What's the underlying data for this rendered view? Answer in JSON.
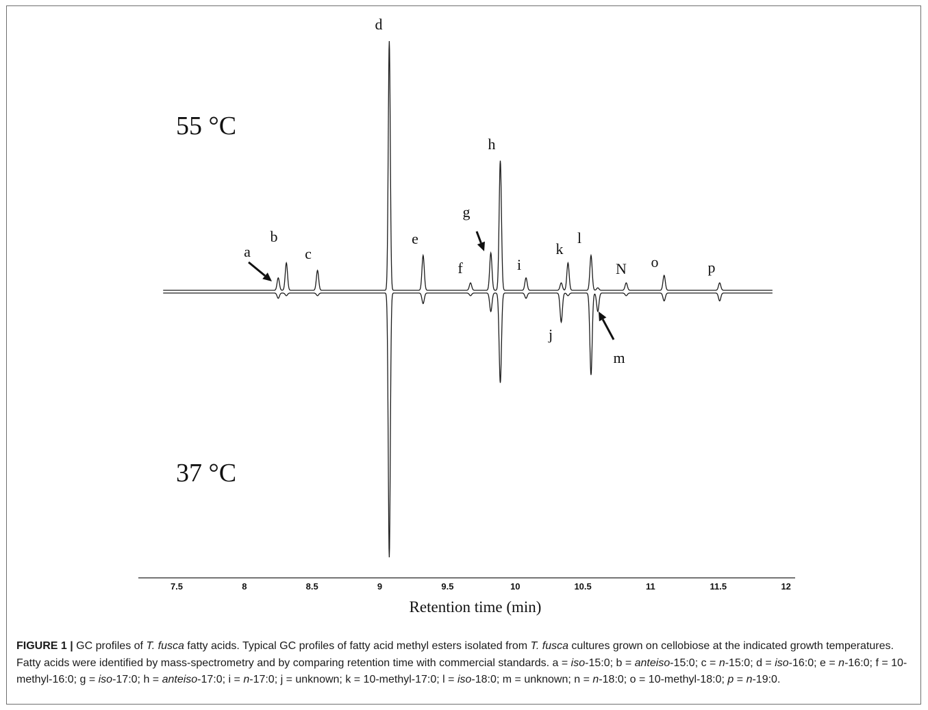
{
  "chart_data": {
    "type": "line",
    "title": "",
    "xlabel": "Retention time (min)",
    "ylabel": "",
    "xlim": [
      7.4,
      11.9
    ],
    "x_ticks": [
      "7.5",
      "8",
      "8.5",
      "9",
      "9.5",
      "10",
      "10.5",
      "11",
      "11.5",
      "12"
    ],
    "grid": false,
    "legend": "none",
    "temperature_labels": [
      "55 °C",
      "37 °C"
    ],
    "baseline_unit": "relative intensity",
    "series": [
      {
        "name": "55 °C",
        "direction": "up",
        "peaks": [
          {
            "label": "a",
            "rt": 8.25,
            "height": 0.05
          },
          {
            "label": "b",
            "rt": 8.31,
            "height": 0.11
          },
          {
            "label": "c",
            "rt": 8.54,
            "height": 0.08
          },
          {
            "label": "d",
            "rt": 9.07,
            "height": 1.0
          },
          {
            "label": "e",
            "rt": 9.32,
            "height": 0.14
          },
          {
            "label": "f",
            "rt": 9.67,
            "height": 0.03
          },
          {
            "label": "g",
            "rt": 9.82,
            "height": 0.15
          },
          {
            "label": "h",
            "rt": 9.89,
            "height": 0.52
          },
          {
            "label": "i",
            "rt": 10.08,
            "height": 0.05
          },
          {
            "label": "j",
            "rt": 10.34,
            "height": 0.03
          },
          {
            "label": "k",
            "rt": 10.39,
            "height": 0.11
          },
          {
            "label": "l",
            "rt": 10.56,
            "height": 0.14
          },
          {
            "label": "m",
            "rt": 10.61,
            "height": 0.01
          },
          {
            "label": "N",
            "rt": 10.82,
            "height": 0.03
          },
          {
            "label": "o",
            "rt": 11.1,
            "height": 0.06
          },
          {
            "label": "p",
            "rt": 11.51,
            "height": 0.03
          }
        ]
      },
      {
        "name": "37 °C",
        "direction": "down",
        "peaks": [
          {
            "label": "a",
            "rt": 8.25,
            "height": 0.02
          },
          {
            "label": "b",
            "rt": 8.31,
            "height": 0.01
          },
          {
            "label": "c",
            "rt": 8.54,
            "height": 0.01
          },
          {
            "label": "d",
            "rt": 9.07,
            "height": 1.0
          },
          {
            "label": "e",
            "rt": 9.32,
            "height": 0.04
          },
          {
            "label": "f",
            "rt": 9.67,
            "height": 0.01
          },
          {
            "label": "g",
            "rt": 9.82,
            "height": 0.07
          },
          {
            "label": "h",
            "rt": 9.89,
            "height": 0.34
          },
          {
            "label": "i",
            "rt": 10.08,
            "height": 0.02
          },
          {
            "label": "j",
            "rt": 10.34,
            "height": 0.11
          },
          {
            "label": "k",
            "rt": 10.39,
            "height": 0.01
          },
          {
            "label": "l",
            "rt": 10.56,
            "height": 0.31
          },
          {
            "label": "m",
            "rt": 10.61,
            "height": 0.07
          },
          {
            "label": "N",
            "rt": 10.82,
            "height": 0.01
          },
          {
            "label": "o",
            "rt": 11.1,
            "height": 0.03
          },
          {
            "label": "p",
            "rt": 11.51,
            "height": 0.03
          }
        ]
      }
    ],
    "peak_labels": [
      "a",
      "b",
      "c",
      "d",
      "e",
      "f",
      "g",
      "h",
      "i",
      "j",
      "k",
      "l",
      "m",
      "N",
      "o",
      "p"
    ],
    "arrows": [
      "a",
      "g",
      "m"
    ]
  },
  "caption": {
    "lead": "FIGURE 1 |",
    "parts": [
      {
        "t": " GC profiles of "
      },
      {
        "t": "T. fusca",
        "i": true
      },
      {
        "t": " fatty acids. Typical GC profiles of fatty acid methyl esters isolated from "
      },
      {
        "t": "T. fusca",
        "i": true
      },
      {
        "t": " cultures grown on cellobiose at the indicated growth temperatures. Fatty acids were identified by mass-spectrometry and by comparing retention time with commercial standards. a = "
      },
      {
        "t": "iso",
        "i": true
      },
      {
        "t": "-15:0; b = "
      },
      {
        "t": "anteiso",
        "i": true
      },
      {
        "t": "-15:0; c = "
      },
      {
        "t": "n",
        "i": true
      },
      {
        "t": "-15:0; d = "
      },
      {
        "t": "iso",
        "i": true
      },
      {
        "t": "-16:0; e = "
      },
      {
        "t": "n",
        "i": true
      },
      {
        "t": "-16:0; f = 10-methyl-16:0; g = "
      },
      {
        "t": "iso",
        "i": true
      },
      {
        "t": "-17:0; h = "
      },
      {
        "t": "anteiso",
        "i": true
      },
      {
        "t": "-17:0; i = "
      },
      {
        "t": "n",
        "i": true
      },
      {
        "t": "-17:0; j = unknown; k = 10-methyl-17:0; l = "
      },
      {
        "t": "iso",
        "i": true
      },
      {
        "t": "-18:0; m = unknown; n = "
      },
      {
        "t": "n",
        "i": true
      },
      {
        "t": "-18:0; o = 10-methyl-18:0; "
      },
      {
        "t": "p",
        "i": true
      },
      {
        "t": " = "
      },
      {
        "t": "n",
        "i": true
      },
      {
        "t": "-19:0."
      }
    ]
  }
}
